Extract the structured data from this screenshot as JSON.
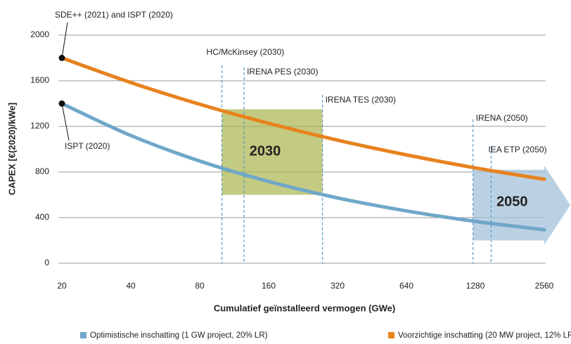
{
  "chart_data": {
    "type": "line",
    "xscale": "log2",
    "x": [
      20,
      40,
      80,
      160,
      320,
      640,
      1280,
      2560
    ],
    "xlim": [
      20,
      2560
    ],
    "xticks": [
      20,
      40,
      80,
      160,
      320,
      640,
      1280,
      2560
    ],
    "ylim": [
      0,
      2000
    ],
    "yticks": [
      0,
      400,
      800,
      1200,
      1600,
      2000
    ],
    "grid": true,
    "xlabel": "Cumulatief geïnstalleerd vermogen (GWe)",
    "ylabel": "CAPEX [€(2020)/kWe]",
    "legend": "bottom",
    "series": [
      {
        "name": "Optimistische inschatting (1 GW project, 20% LR)",
        "color": "#6fa7c8",
        "values": [
          1400,
          1120,
          896,
          717,
          573,
          459,
          367,
          294
        ]
      },
      {
        "name": "Voorzichtige inschatting (20 MW project, 12% LR)",
        "color": "#e8821e",
        "values": [
          1800,
          1584,
          1394,
          1227,
          1079,
          950,
          836,
          736
        ]
      }
    ],
    "vlines": [
      {
        "x": 100,
        "label": "HC/McKinsey (2030)"
      },
      {
        "x": 125,
        "label": "IRENA PES (2030)"
      },
      {
        "x": 275,
        "label": "IRENA TES (2030)"
      },
      {
        "x": 1250,
        "label": "IRENA (2050)"
      },
      {
        "x": 1500,
        "label": "IEA ETP (2050)"
      }
    ],
    "box": {
      "label": "2030",
      "x": [
        100,
        275
      ],
      "y": [
        600,
        1350
      ],
      "color": "#a9b44c"
    },
    "arrow": {
      "label": "2050",
      "x": [
        1250,
        2560
      ],
      "y": [
        200,
        820
      ],
      "color": "#a3c2da"
    },
    "annotations": [
      {
        "text": "SDE++ (2021) and ISPT (2020)",
        "series": 1,
        "index": 0
      },
      {
        "text": "ISPT (2020)",
        "series": 0,
        "index": 0
      }
    ]
  }
}
